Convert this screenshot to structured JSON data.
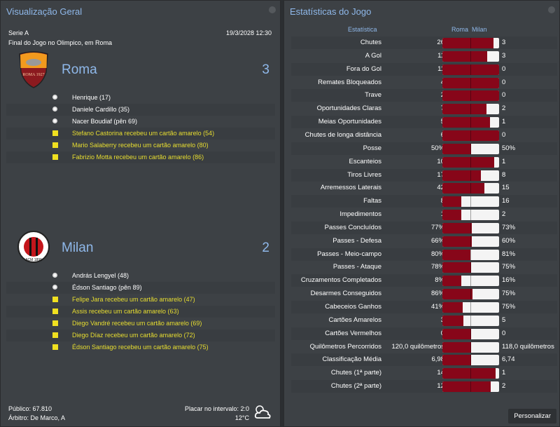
{
  "overview": {
    "title": "Visualização Geral",
    "competition": "Serie A",
    "datetime": "19/3/2028 12:30",
    "status": "Final do Jogo no Olimpico, em Roma",
    "home": {
      "name": "Roma",
      "score": "3",
      "crest_text": "ROMA 1927",
      "events": [
        {
          "type": "goal",
          "text": "Henrique (17)"
        },
        {
          "type": "goal",
          "text": "Daniele Cardillo (35)"
        },
        {
          "type": "goal",
          "text": "Nacer Boudiaf (pên 69)"
        },
        {
          "type": "yellow",
          "text": "Stefano Castorina recebeu um cartão amarelo (54)"
        },
        {
          "type": "yellow",
          "text": "Mario Salaberry recebeu um cartão amarelo (80)"
        },
        {
          "type": "yellow",
          "text": "Fabrizio Motta recebeu um cartão amarelo (86)"
        }
      ]
    },
    "away": {
      "name": "Milan",
      "score": "2",
      "crest_text": "ACM 1899",
      "events": [
        {
          "type": "goal",
          "text": "András Lengyel (48)"
        },
        {
          "type": "goal",
          "text": "Édson Santiago (pên 89)"
        },
        {
          "type": "yellow",
          "text": "Felipe Jara recebeu um cartão amarelo (47)"
        },
        {
          "type": "yellow",
          "text": "Assis recebeu um cartão amarelo (63)"
        },
        {
          "type": "yellow",
          "text": "Diego Vandré recebeu um cartão amarelo (69)"
        },
        {
          "type": "yellow",
          "text": "Diego Díaz recebeu um cartão amarelo (72)"
        },
        {
          "type": "yellow",
          "text": "Édson Santiago recebeu um cartão amarelo (75)"
        }
      ]
    },
    "attendance": "Público: 67.810",
    "referee": "Árbitro: De Marco, A",
    "halftime": "Placar no intervalo: 2:0",
    "temperature": "12°C",
    "weather_icon": "cloudy-icon"
  },
  "stats": {
    "title": "Estatísticas do Jogo",
    "col_stat": "Estatística",
    "col_home": "Roma",
    "col_away": "Milan",
    "colors": {
      "home": "#870619",
      "away": "#f4f4f4"
    },
    "customize": "Personalizar",
    "rows": [
      [
        "Chutes",
        "26",
        "3"
      ],
      [
        "A Gol",
        "11",
        "3"
      ],
      [
        "Fora do Gol",
        "11",
        "0"
      ],
      [
        "Remates Bloqueados",
        "4",
        "0"
      ],
      [
        "Trave",
        "2",
        "0"
      ],
      [
        "Oportunidades Claras",
        "7",
        "2"
      ],
      [
        "Meias Oportunidades",
        "5",
        "1"
      ],
      [
        "Chutes de longa distância",
        "6",
        "0"
      ],
      [
        "Posse",
        "50%",
        "50%"
      ],
      [
        "Escanteios",
        "10",
        "1"
      ],
      [
        "Tiros Livres",
        "17",
        "8"
      ],
      [
        "Arremessos Laterais",
        "42",
        "15"
      ],
      [
        "Faltas",
        "8",
        "16"
      ],
      [
        "Impedimentos",
        "1",
        "2"
      ],
      [
        "Passes Concluídos",
        "77%",
        "73%"
      ],
      [
        "Passes - Defesa",
        "66%",
        "60%"
      ],
      [
        "Passes - Meio-campo",
        "80%",
        "81%"
      ],
      [
        "Passes - Ataque",
        "78%",
        "75%"
      ],
      [
        "Cruzamentos Completados",
        "8%",
        "16%"
      ],
      [
        "Desarmes Conseguidos",
        "86%",
        "75%"
      ],
      [
        "Cabeceios Ganhos",
        "41%",
        "75%"
      ],
      [
        "Cartões Amarelos",
        "3",
        "5"
      ],
      [
        "Cartões Vermelhos",
        "0",
        "0"
      ],
      [
        "Quilômetros Percorridos",
        "120,0 quilômetros",
        "118,0 quilômetros"
      ],
      [
        "Classificação Média",
        "6,98",
        "6,74"
      ],
      [
        "Chutes (1ª parte)",
        "14",
        "1"
      ],
      [
        "Chutes (2ª parte)",
        "12",
        "2"
      ]
    ]
  }
}
